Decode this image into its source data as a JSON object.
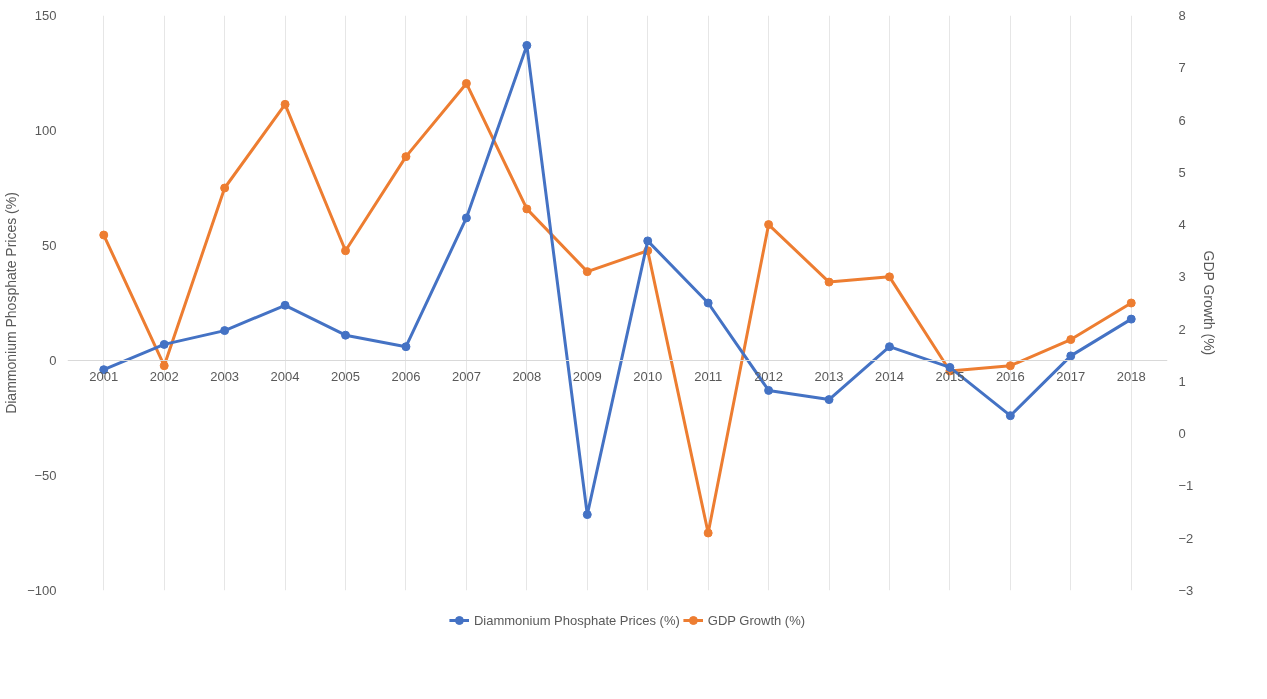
{
  "chart_data": {
    "type": "line",
    "categories": [
      "2001",
      "2002",
      "2003",
      "2004",
      "2005",
      "2006",
      "2007",
      "2008",
      "2009",
      "2010",
      "2011",
      "2012",
      "2013",
      "2014",
      "2015",
      "2016",
      "2017",
      "2018"
    ],
    "series": [
      {
        "name": "Diammonium Phosphate Prices (%)",
        "color": "#4472c4",
        "values": [
          -4,
          7,
          13,
          24,
          11,
          6,
          62,
          137,
          -67,
          52,
          25,
          -13,
          -17,
          6,
          -3,
          -24,
          2,
          18
        ]
      },
      {
        "name": "GDP Growth (%)",
        "color": "#ed7d31",
        "axis": "y2",
        "values": [
          3.8,
          1.3,
          4.7,
          6.3,
          3.5,
          5.3,
          6.7,
          4.3,
          3.1,
          3.5,
          -1.9,
          4.0,
          2.9,
          3.0,
          1.2,
          1.3,
          1.8,
          2.5
        ]
      }
    ],
    "ylabel": "Diammonium Phosphate Prices (%)",
    "y2label": "GDP Growth (%)",
    "ylim": [
      -100,
      150
    ],
    "yticks": [
      -100,
      -50,
      0,
      50,
      100,
      150
    ],
    "y2lim": [
      -3,
      8
    ],
    "y2ticks": [
      -3,
      -2,
      -1,
      0,
      1,
      2,
      3,
      4,
      5,
      6,
      7,
      8
    ],
    "grid": "x",
    "legend": "bottom",
    "marker": "circle",
    "line_style": "solid"
  }
}
